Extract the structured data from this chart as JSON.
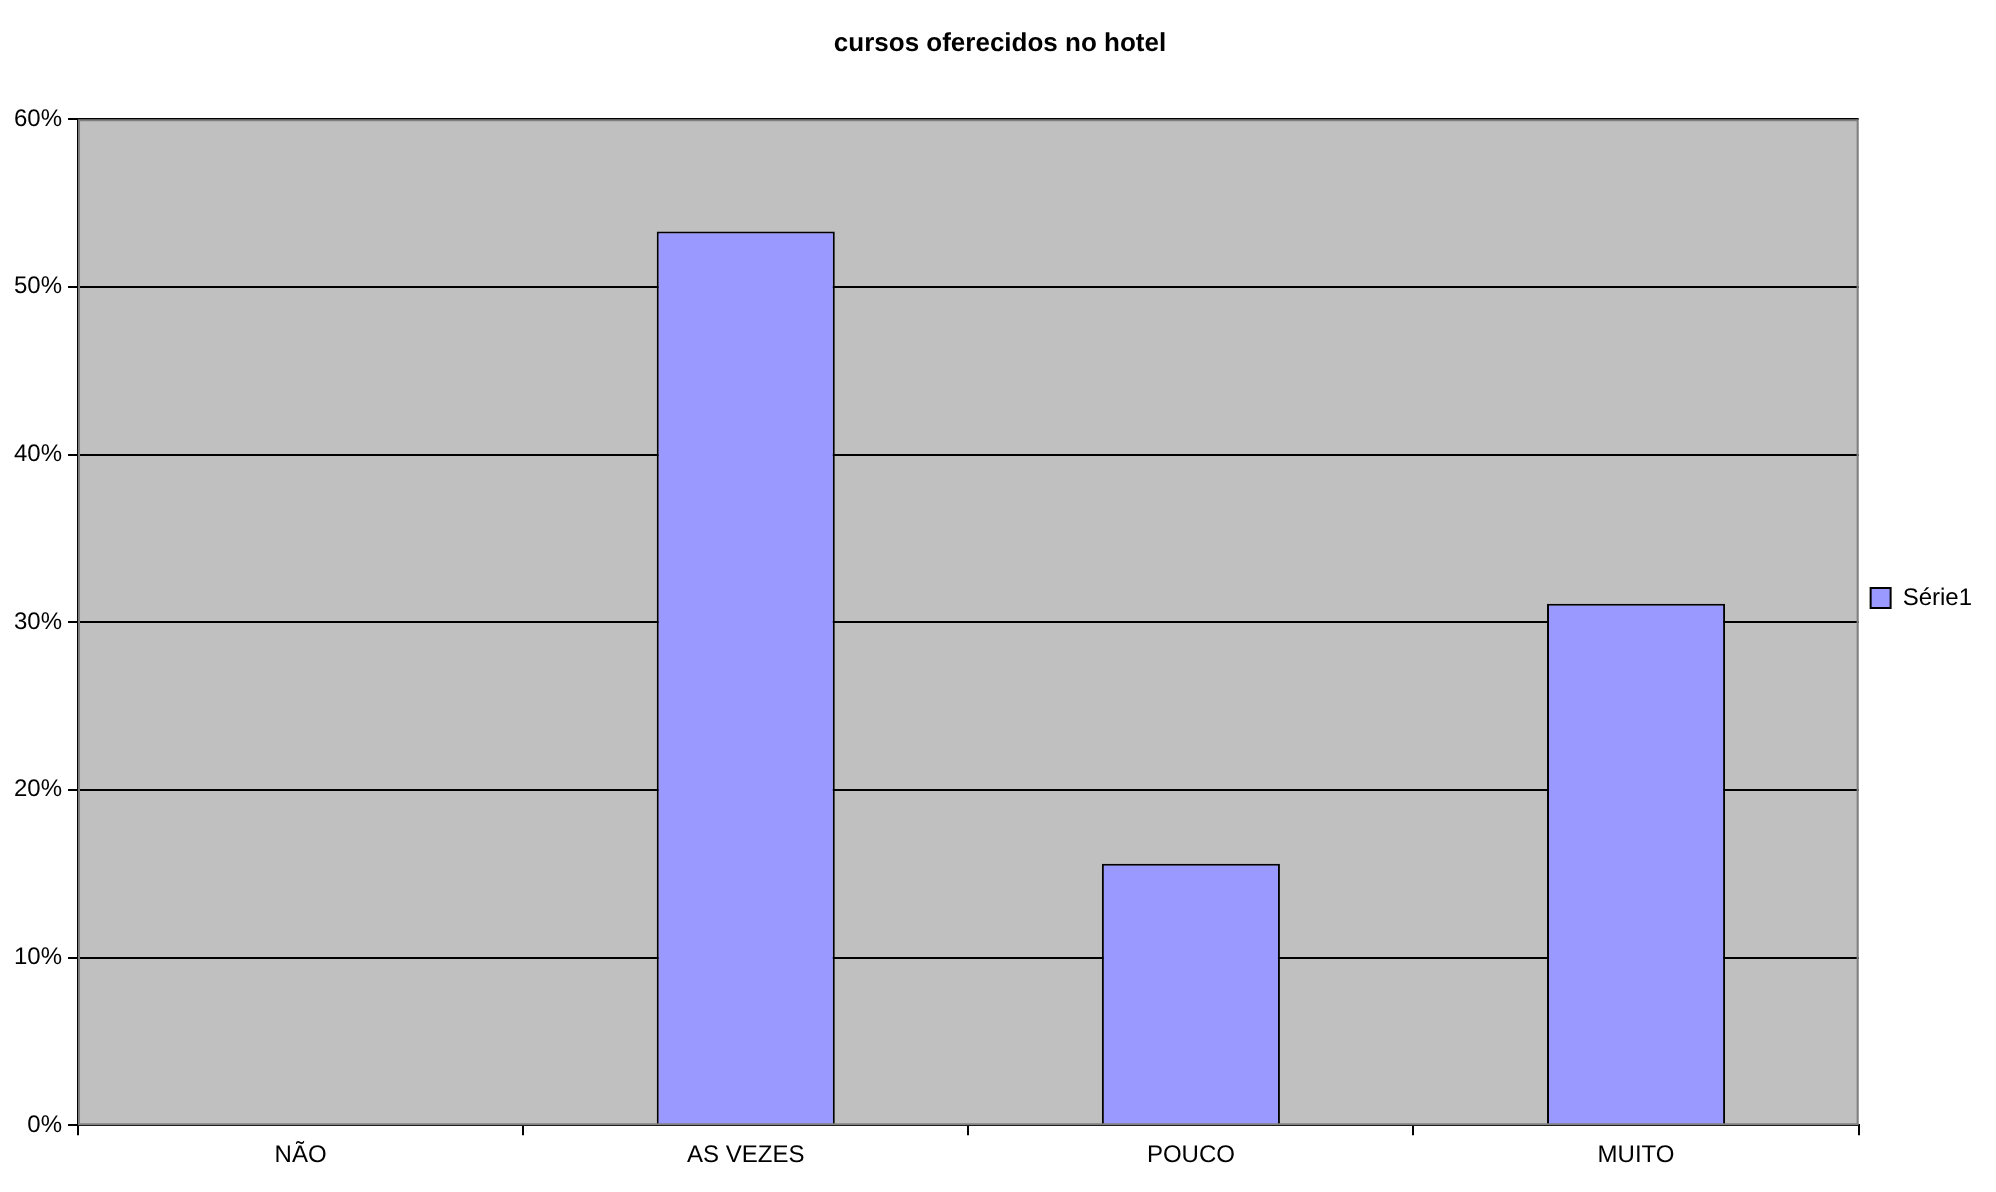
{
  "chart_data": {
    "type": "bar",
    "title": "cursos oferecidos no hotel",
    "categories": [
      "NÃO",
      "AS VEZES",
      "POUCO",
      "MUITO"
    ],
    "series": [
      {
        "name": "Série1",
        "color": "#9999ff",
        "values": [
          0,
          53.3,
          15.6,
          31.1
        ]
      }
    ],
    "ylim": [
      0,
      60
    ],
    "yticks": [
      {
        "value": 0,
        "label": "0%"
      },
      {
        "value": 10,
        "label": "10%"
      },
      {
        "value": 20,
        "label": "20%"
      },
      {
        "value": 30,
        "label": "30%"
      },
      {
        "value": 40,
        "label": "40%"
      },
      {
        "value": 50,
        "label": "50%"
      },
      {
        "value": 60,
        "label": "60%"
      }
    ],
    "grid": "y",
    "legend": "right"
  }
}
